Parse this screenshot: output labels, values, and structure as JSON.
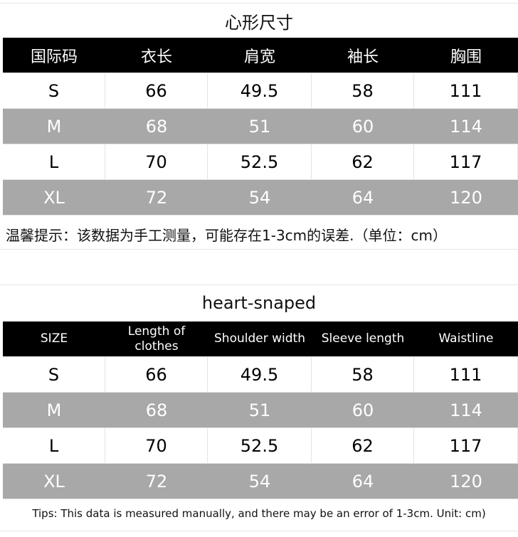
{
  "cn": {
    "title": "心形尺寸",
    "headers": [
      "国际码",
      "衣长",
      "肩宽",
      "袖长",
      "胸围"
    ],
    "rows": [
      [
        "S",
        "66",
        "49.5",
        "58",
        "111"
      ],
      [
        "M",
        "68",
        "51",
        "60",
        "114"
      ],
      [
        "L",
        "70",
        "52.5",
        "62",
        "117"
      ],
      [
        "XL",
        "72",
        "54",
        "64",
        "120"
      ]
    ],
    "note": "温馨提示：该数据为手工测量，可能存在1-3cm的误差.（单位：cm）"
  },
  "en": {
    "title": "heart-snaped",
    "headers": [
      "SIZE",
      "Length of clothes",
      "Shoulder width",
      "Sleeve length",
      "Waistline"
    ],
    "rows": [
      [
        "S",
        "66",
        "49.5",
        "58",
        "111"
      ],
      [
        "M",
        "68",
        "51",
        "60",
        "114"
      ],
      [
        "L",
        "70",
        "52.5",
        "62",
        "117"
      ],
      [
        "XL",
        "72",
        "54",
        "64",
        "120"
      ]
    ],
    "note": "Tips: This data is measured manually, and there may be an error of 1-3cm. Unit: cm)"
  },
  "colors": {
    "header_bg": "#000000",
    "stripe_bg": "#a8a8a8"
  }
}
